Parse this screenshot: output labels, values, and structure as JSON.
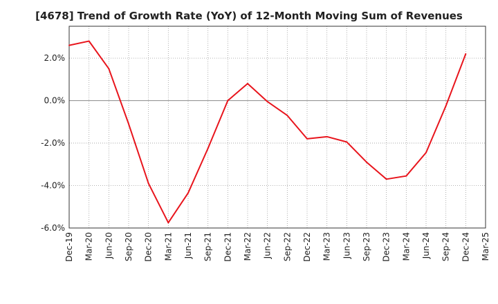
{
  "chart_data": {
    "type": "line",
    "title": "[4678]  Trend of Growth Rate (YoY) of 12-Month Moving Sum of Revenues",
    "xlabel": "",
    "ylabel": "",
    "x_ticks": [
      "Dec-19",
      "Mar-20",
      "Jun-20",
      "Sep-20",
      "Dec-20",
      "Mar-21",
      "Jun-21",
      "Sep-21",
      "Dec-21",
      "Mar-22",
      "Jun-22",
      "Sep-22",
      "Dec-22",
      "Mar-23",
      "Jun-23",
      "Sep-23",
      "Dec-23",
      "Mar-24",
      "Jun-24",
      "Sep-24",
      "Dec-24",
      "Mar-25"
    ],
    "y_ticks": [
      "2.0%",
      "0.0%",
      "-2.0%",
      "-4.0%",
      "-6.0%"
    ],
    "y_tick_values": [
      2,
      0,
      -2,
      -4,
      -6
    ],
    "ylim": [
      -6,
      3.5
    ],
    "grid": true,
    "series": [
      {
        "color": "#e8141c",
        "x": [
          "Dec-19",
          "Mar-20",
          "Jun-20",
          "Sep-20",
          "Dec-20",
          "Mar-21",
          "Jun-21",
          "Sep-21",
          "Dec-21",
          "Mar-22",
          "Jun-22",
          "Sep-22",
          "Dec-22",
          "Mar-23",
          "Jun-23",
          "Sep-23",
          "Dec-23",
          "Mar-24",
          "Jun-24",
          "Sep-24",
          "Dec-24"
        ],
        "values": [
          2.6,
          2.8,
          1.5,
          -1.1,
          -3.9,
          -5.75,
          -4.35,
          -2.25,
          0.0,
          0.8,
          -0.05,
          -0.7,
          -1.8,
          -1.7,
          -1.95,
          -2.9,
          -3.7,
          -3.55,
          -2.45,
          -0.25,
          2.2
        ]
      }
    ]
  }
}
